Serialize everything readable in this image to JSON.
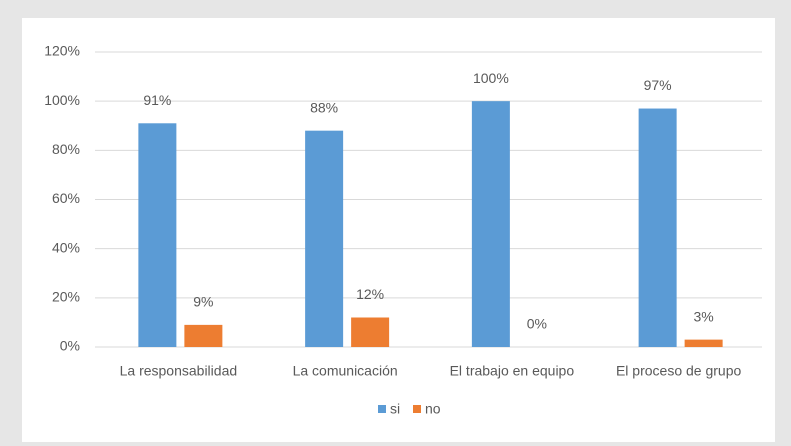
{
  "chart_data": {
    "type": "bar",
    "categories": [
      "La responsabilidad",
      "La comunicación",
      "El trabajo en equipo",
      "El proceso de grupo"
    ],
    "series": [
      {
        "name": "si",
        "color": "#5b9bd5",
        "values": [
          91,
          88,
          100,
          97
        ],
        "value_labels": [
          "91%",
          "88%",
          "100%",
          "97%"
        ]
      },
      {
        "name": "no",
        "color": "#ed7d31",
        "values": [
          9,
          12,
          0,
          3
        ],
        "value_labels": [
          "9%",
          "12%",
          "0%",
          "3%"
        ]
      }
    ],
    "ylim": [
      0,
      120
    ],
    "yticks": [
      {
        "value": 0,
        "label": "0%"
      },
      {
        "value": 20,
        "label": "20%"
      },
      {
        "value": 40,
        "label": "40%"
      },
      {
        "value": 60,
        "label": "60%"
      },
      {
        "value": 80,
        "label": "80%"
      },
      {
        "value": 100,
        "label": "100%"
      },
      {
        "value": 120,
        "label": "120%"
      }
    ],
    "grid": true,
    "legend": "bottom"
  }
}
